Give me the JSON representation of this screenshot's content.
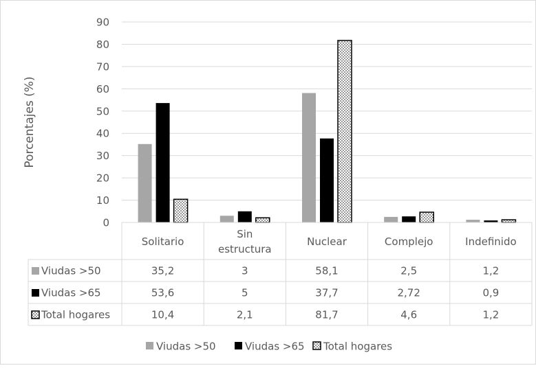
{
  "chart_data": {
    "type": "bar",
    "title": "",
    "xlabel": "",
    "ylabel": "Porcentajes (%)",
    "ylim": [
      0,
      90
    ],
    "yticks": [
      "0",
      "10",
      "20",
      "30",
      "40",
      "50",
      "60",
      "70",
      "80",
      "90"
    ],
    "grid": true,
    "legend_position": "bottom",
    "categories": [
      [
        "Solitario"
      ],
      [
        "Sin",
        "estructura"
      ],
      [
        "Nuclear"
      ],
      [
        "Complejo"
      ],
      [
        "Indefinido"
      ]
    ],
    "series": [
      {
        "name": "Viudas >50",
        "color": "#a6a6a6",
        "pattern": "solid",
        "values": [
          35.2,
          3,
          58.1,
          2.5,
          1.2
        ],
        "labels": [
          "35,2",
          "3",
          "58,1",
          "2,5",
          "1,2"
        ]
      },
      {
        "name": "Viudas >65",
        "color": "#000000",
        "pattern": "solid",
        "values": [
          53.6,
          5,
          37.7,
          2.72,
          0.9
        ],
        "labels": [
          "53,6",
          "5",
          "37,7",
          "2,72",
          "0,9"
        ]
      },
      {
        "name": "Total hogares",
        "color": "#ffffff",
        "pattern": "dotted",
        "values": [
          10.4,
          2.1,
          81.7,
          4.6,
          1.2
        ],
        "labels": [
          "10,4",
          "2,1",
          "81,7",
          "4,6",
          "1,2"
        ]
      }
    ]
  }
}
